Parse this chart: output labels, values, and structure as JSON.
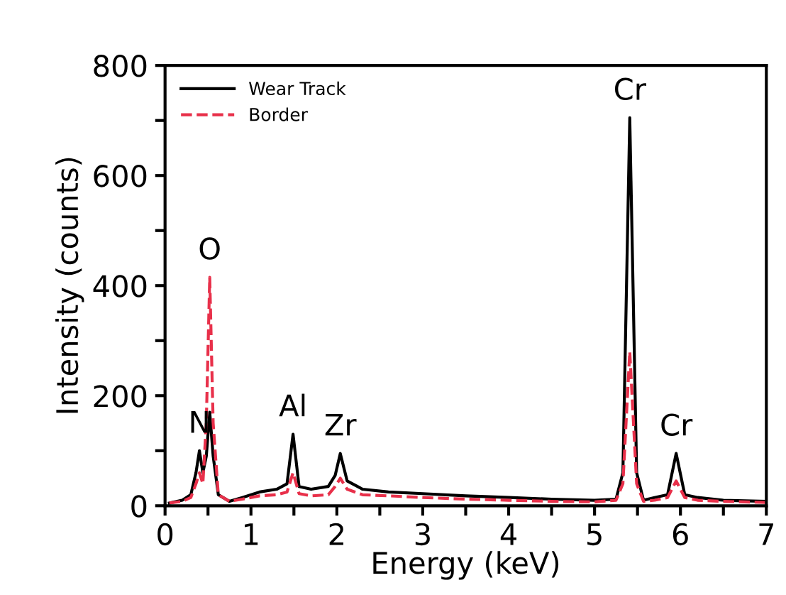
{
  "chart_data": {
    "type": "line",
    "xlabel": "Energy (keV)",
    "ylabel": "Intensity (counts)",
    "xlim": [
      0,
      7
    ],
    "ylim": [
      0,
      800
    ],
    "xticks": [
      0,
      {
        "value": 0.5,
        "label": null
      },
      1,
      {
        "value": 1.5,
        "label": null
      },
      2,
      {
        "value": 2.5,
        "label": null
      },
      3,
      {
        "value": 3.5,
        "label": null
      },
      4,
      {
        "value": 4.5,
        "label": null
      },
      5,
      {
        "value": 5.5,
        "label": null
      },
      6,
      {
        "value": 6.5,
        "label": null
      },
      7
    ],
    "yticks": [
      0,
      {
        "value": 100,
        "label": null
      },
      200,
      {
        "value": 300,
        "label": null
      },
      400,
      {
        "value": 500,
        "label": null
      },
      600,
      {
        "value": 700,
        "label": null
      },
      800
    ],
    "legend": "top left",
    "grid": false,
    "series": [
      {
        "name": "Wear Track",
        "color": "#000000",
        "line_style": "solid",
        "x": [
          0.05,
          0.2,
          0.3,
          0.36,
          0.4,
          0.44,
          0.48,
          0.52,
          0.56,
          0.62,
          0.75,
          0.9,
          1.1,
          1.3,
          1.42,
          1.49,
          1.56,
          1.7,
          1.9,
          1.98,
          2.04,
          2.12,
          2.3,
          2.6,
          3.0,
          3.5,
          4.0,
          4.5,
          5.0,
          5.25,
          5.33,
          5.41,
          5.49,
          5.57,
          5.7,
          5.85,
          5.95,
          6.05,
          6.2,
          6.5,
          7.0
        ],
        "values": [
          5,
          10,
          20,
          60,
          100,
          60,
          90,
          170,
          90,
          20,
          8,
          15,
          25,
          30,
          40,
          130,
          35,
          30,
          35,
          55,
          95,
          45,
          30,
          25,
          22,
          18,
          15,
          12,
          10,
          12,
          60,
          705,
          60,
          10,
          15,
          20,
          95,
          20,
          15,
          10,
          8
        ]
      },
      {
        "name": "Border",
        "color": "#e8304a",
        "line_style": "dashed",
        "x": [
          0.05,
          0.2,
          0.3,
          0.36,
          0.4,
          0.44,
          0.48,
          0.52,
          0.56,
          0.62,
          0.75,
          0.9,
          1.1,
          1.3,
          1.42,
          1.49,
          1.56,
          1.7,
          1.9,
          1.98,
          2.04,
          2.12,
          2.3,
          2.6,
          3.0,
          3.5,
          4.0,
          4.5,
          5.0,
          5.25,
          5.33,
          5.41,
          5.49,
          5.57,
          5.7,
          5.85,
          5.95,
          6.05,
          6.2,
          6.5,
          7.0
        ],
        "values": [
          5,
          8,
          15,
          40,
          60,
          40,
          150,
          415,
          150,
          20,
          8,
          12,
          18,
          20,
          25,
          60,
          22,
          18,
          20,
          35,
          50,
          30,
          20,
          18,
          15,
          12,
          10,
          8,
          7,
          10,
          40,
          280,
          40,
          8,
          10,
          15,
          45,
          15,
          10,
          8,
          6
        ]
      }
    ],
    "annotations": [
      {
        "text": "N",
        "x": 0.4,
        "y": 100
      },
      {
        "text": "O",
        "x": 0.52,
        "y": 415
      },
      {
        "text": "Al",
        "x": 1.49,
        "y": 130
      },
      {
        "text": "Zr",
        "x": 2.04,
        "y": 95
      },
      {
        "text": "Cr",
        "x": 5.41,
        "y": 705
      },
      {
        "text": "Cr",
        "x": 5.95,
        "y": 95
      }
    ]
  }
}
